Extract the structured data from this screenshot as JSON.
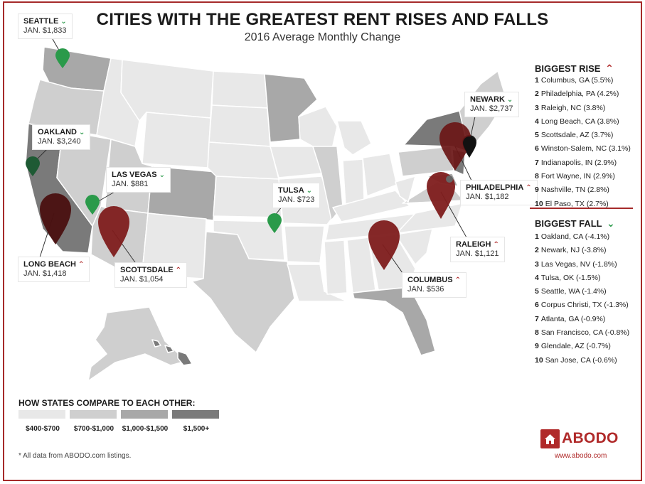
{
  "title": "CITIES WITH THE GREATEST RENT RISES AND FALLS",
  "subtitle": "2016 Average Monthly Change",
  "colors": {
    "border": "#a52a2a",
    "rise": "#7e1c1c",
    "rise_dark": "#4a1010",
    "fall": "#2a9a4a",
    "fall_dark": "#1e5a34",
    "tier1": "#e8e8e8",
    "tier2": "#cfcfcf",
    "tier3": "#a8a8a8",
    "tier4": "#7a7a7a"
  },
  "callouts": [
    {
      "city": "SEATTLE",
      "value": "JAN. $1,833",
      "dir": "down"
    },
    {
      "city": "OAKLAND",
      "value": "JAN. $3,240",
      "dir": "down"
    },
    {
      "city": "LAS VEGAS",
      "value": "JAN. $881",
      "dir": "down"
    },
    {
      "city": "TULSA",
      "value": "JAN. $723",
      "dir": "down"
    },
    {
      "city": "NEWARK",
      "value": "JAN. $2,737",
      "dir": "down"
    },
    {
      "city": "PHILADELPHIA",
      "value": "JAN. $1,182",
      "dir": "up"
    },
    {
      "city": "RALEIGH",
      "value": "JAN. $1,121",
      "dir": "up"
    },
    {
      "city": "COLUMBUS",
      "value": "JAN. $536",
      "dir": "up"
    },
    {
      "city": "LONG BEACH",
      "value": "JAN. $1,418",
      "dir": "up"
    },
    {
      "city": "SCOTTSDALE",
      "value": "JAN. $1,054",
      "dir": "up"
    }
  ],
  "rise": {
    "title": "BIGGEST RISE",
    "items": [
      {
        "n": "1",
        "text": "Columbus, GA (5.5%)"
      },
      {
        "n": "2",
        "text": "Philadelphia, PA (4.2%)"
      },
      {
        "n": "3",
        "text": "Raleigh, NC (3.8%)"
      },
      {
        "n": "4",
        "text": "Long Beach, CA (3.8%)"
      },
      {
        "n": "5",
        "text": "Scottsdale, AZ (3.7%)"
      },
      {
        "n": "6",
        "text": "Winston-Salem, NC (3.1%)"
      },
      {
        "n": "7",
        "text": "Indianapolis, IN (2.9%)"
      },
      {
        "n": "8",
        "text": "Fort Wayne, IN (2.9%)"
      },
      {
        "n": "9",
        "text": "Nashville, TN (2.8%)"
      },
      {
        "n": "10",
        "text": "El Paso, TX (2.7%)"
      }
    ]
  },
  "fall": {
    "title": "BIGGEST FALL",
    "items": [
      {
        "n": "1",
        "text": "Oakland, CA (-4.1%)"
      },
      {
        "n": "2",
        "text": "Newark, NJ (-3.8%)"
      },
      {
        "n": "3",
        "text": "Las Vegas, NV (-1.8%)"
      },
      {
        "n": "4",
        "text": "Tulsa, OK (-1.5%)"
      },
      {
        "n": "5",
        "text": "Seattle, WA (-1.4%)"
      },
      {
        "n": "6",
        "text": "Corpus Christi, TX (-1.3%)"
      },
      {
        "n": "7",
        "text": "Atlanta, GA (-0.9%)"
      },
      {
        "n": "8",
        "text": "San Francisco, CA (-0.8%)"
      },
      {
        "n": "9",
        "text": "Glendale, AZ (-0.7%)"
      },
      {
        "n": "10",
        "text": "San Jose, CA (-0.6%)"
      }
    ]
  },
  "legend": {
    "title": "HOW STATES COMPARE TO EACH OTHER:",
    "items": [
      {
        "label": "$400-$700"
      },
      {
        "label": "$700-$1,000"
      },
      {
        "label": "$1,000-$1,500"
      },
      {
        "label": "$1,500+"
      }
    ]
  },
  "footnote": "* All data from ABODO.com listings.",
  "brand": {
    "name": "ABODO",
    "site": "www.abodo.com"
  }
}
